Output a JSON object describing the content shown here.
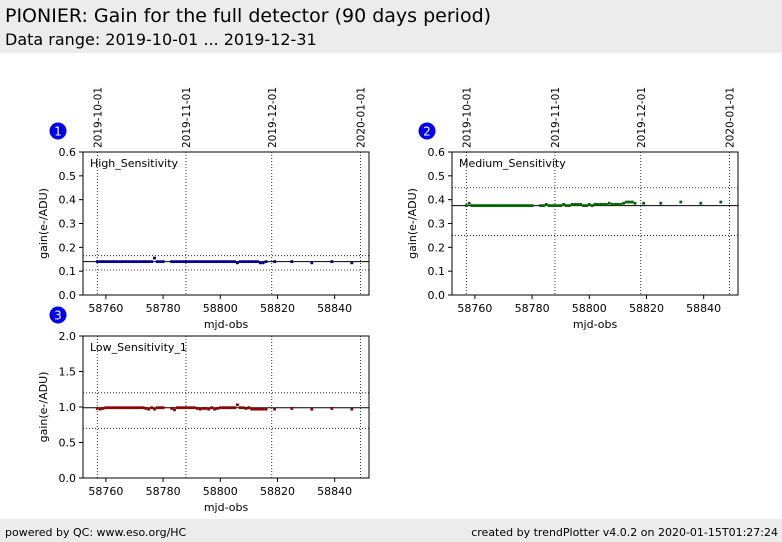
{
  "header": {
    "title": "PIONIER: Gain for the full detector (90 days period)",
    "subtitle": "Data range: 2019-10-01 ... 2019-12-31"
  },
  "footer": {
    "left": "powered by QC: www.eso.org/HC",
    "right": "created by trendPlotter v4.0.2 on 2020-01-15T01:27:24"
  },
  "colors": {
    "high": "#00008b",
    "medium": "#006400",
    "low": "#8b0000",
    "badge": "#0000ee"
  },
  "chart_data": [
    {
      "type": "scatter",
      "badge": "1",
      "label": "High_Sensitivity",
      "xlabel": "mjd-obs",
      "ylabel": "gain(e-/ADU)",
      "xlim": [
        58752,
        58852
      ],
      "ylim": [
        0.0,
        0.6
      ],
      "xticks": [
        58760,
        58780,
        58800,
        58820,
        58840
      ],
      "yticks": [
        "0.0",
        "0.1",
        "0.2",
        "0.3",
        "0.4",
        "0.5",
        "0.6"
      ],
      "date_ticks": [
        {
          "label": "2019-10-01",
          "mjd": 58757
        },
        {
          "label": "2019-11-01",
          "mjd": 58788
        },
        {
          "label": "2019-12-01",
          "mjd": 58818
        },
        {
          "label": "2020-01-01",
          "mjd": 58849
        }
      ],
      "ref_line": 0.14,
      "band": [
        0.105,
        0.165
      ],
      "points": [
        [
          58757,
          0.14
        ],
        [
          58758,
          0.14
        ],
        [
          58759,
          0.14
        ],
        [
          58760,
          0.14
        ],
        [
          58761,
          0.14
        ],
        [
          58762,
          0.14
        ],
        [
          58763,
          0.14
        ],
        [
          58764,
          0.14
        ],
        [
          58765,
          0.14
        ],
        [
          58766,
          0.14
        ],
        [
          58767,
          0.14
        ],
        [
          58768,
          0.14
        ],
        [
          58769,
          0.14
        ],
        [
          58770,
          0.14
        ],
        [
          58771,
          0.14
        ],
        [
          58772,
          0.14
        ],
        [
          58773,
          0.14
        ],
        [
          58774,
          0.14
        ],
        [
          58775,
          0.14
        ],
        [
          58776,
          0.14
        ],
        [
          58777,
          0.155
        ],
        [
          58778,
          0.14
        ],
        [
          58779,
          0.14
        ],
        [
          58780,
          0.14
        ],
        [
          58783,
          0.14
        ],
        [
          58784,
          0.14
        ],
        [
          58785,
          0.14
        ],
        [
          58786,
          0.14
        ],
        [
          58787,
          0.14
        ],
        [
          58788,
          0.14
        ],
        [
          58789,
          0.14
        ],
        [
          58790,
          0.14
        ],
        [
          58791,
          0.14
        ],
        [
          58792,
          0.14
        ],
        [
          58793,
          0.14
        ],
        [
          58794,
          0.14
        ],
        [
          58795,
          0.14
        ],
        [
          58796,
          0.14
        ],
        [
          58797,
          0.14
        ],
        [
          58798,
          0.14
        ],
        [
          58799,
          0.14
        ],
        [
          58800,
          0.14
        ],
        [
          58801,
          0.14
        ],
        [
          58802,
          0.14
        ],
        [
          58803,
          0.14
        ],
        [
          58804,
          0.14
        ],
        [
          58805,
          0.14
        ],
        [
          58806,
          0.135
        ],
        [
          58807,
          0.14
        ],
        [
          58808,
          0.14
        ],
        [
          58809,
          0.14
        ],
        [
          58810,
          0.14
        ],
        [
          58811,
          0.14
        ],
        [
          58812,
          0.14
        ],
        [
          58813,
          0.14
        ],
        [
          58814,
          0.135
        ],
        [
          58815,
          0.135
        ],
        [
          58816,
          0.14
        ],
        [
          58819,
          0.14
        ],
        [
          58825,
          0.14
        ],
        [
          58832,
          0.135
        ],
        [
          58839,
          0.14
        ],
        [
          58846,
          0.135
        ]
      ]
    },
    {
      "type": "scatter",
      "badge": "2",
      "label": "Medium_Sensitivity",
      "xlabel": "mjd-obs",
      "ylabel": "gain(e-/ADU)",
      "xlim": [
        58752,
        58852
      ],
      "ylim": [
        0.0,
        0.6
      ],
      "xticks": [
        58760,
        58780,
        58800,
        58820,
        58840
      ],
      "yticks": [
        "0.0",
        "0.1",
        "0.2",
        "0.3",
        "0.4",
        "0.5",
        "0.6"
      ],
      "date_ticks": [
        {
          "label": "2019-10-01",
          "mjd": 58757
        },
        {
          "label": "2019-11-01",
          "mjd": 58788
        },
        {
          "label": "2019-12-01",
          "mjd": 58818
        },
        {
          "label": "2020-01-01",
          "mjd": 58849
        }
      ],
      "ref_line": 0.375,
      "band": [
        0.25,
        0.45
      ],
      "points": [
        [
          58757,
          0.375
        ],
        [
          58758,
          0.385
        ],
        [
          58759,
          0.375
        ],
        [
          58760,
          0.375
        ],
        [
          58761,
          0.375
        ],
        [
          58762,
          0.375
        ],
        [
          58763,
          0.375
        ],
        [
          58764,
          0.375
        ],
        [
          58765,
          0.375
        ],
        [
          58766,
          0.375
        ],
        [
          58767,
          0.375
        ],
        [
          58768,
          0.375
        ],
        [
          58769,
          0.375
        ],
        [
          58770,
          0.375
        ],
        [
          58771,
          0.375
        ],
        [
          58772,
          0.375
        ],
        [
          58773,
          0.375
        ],
        [
          58774,
          0.375
        ],
        [
          58775,
          0.375
        ],
        [
          58776,
          0.375
        ],
        [
          58777,
          0.375
        ],
        [
          58778,
          0.375
        ],
        [
          58779,
          0.375
        ],
        [
          58780,
          0.375
        ],
        [
          58783,
          0.375
        ],
        [
          58784,
          0.375
        ],
        [
          58785,
          0.38
        ],
        [
          58786,
          0.375
        ],
        [
          58787,
          0.375
        ],
        [
          58788,
          0.375
        ],
        [
          58789,
          0.375
        ],
        [
          58790,
          0.375
        ],
        [
          58791,
          0.38
        ],
        [
          58792,
          0.375
        ],
        [
          58793,
          0.375
        ],
        [
          58794,
          0.38
        ],
        [
          58795,
          0.38
        ],
        [
          58796,
          0.38
        ],
        [
          58797,
          0.38
        ],
        [
          58798,
          0.375
        ],
        [
          58799,
          0.375
        ],
        [
          58800,
          0.38
        ],
        [
          58801,
          0.375
        ],
        [
          58802,
          0.38
        ],
        [
          58803,
          0.38
        ],
        [
          58804,
          0.38
        ],
        [
          58805,
          0.38
        ],
        [
          58806,
          0.38
        ],
        [
          58807,
          0.385
        ],
        [
          58808,
          0.38
        ],
        [
          58809,
          0.38
        ],
        [
          58810,
          0.38
        ],
        [
          58811,
          0.38
        ],
        [
          58812,
          0.385
        ],
        [
          58813,
          0.39
        ],
        [
          58814,
          0.39
        ],
        [
          58815,
          0.39
        ],
        [
          58816,
          0.385
        ],
        [
          58819,
          0.385
        ],
        [
          58825,
          0.385
        ],
        [
          58832,
          0.39
        ],
        [
          58839,
          0.385
        ],
        [
          58846,
          0.39
        ]
      ]
    },
    {
      "type": "scatter",
      "badge": "3",
      "label": "Low_Sensitivity_1",
      "xlabel": "mjd-obs",
      "ylabel": "gain(e-/ADU)",
      "xlim": [
        58752,
        58852
      ],
      "ylim": [
        0.0,
        2.0
      ],
      "xticks": [
        58760,
        58780,
        58800,
        58820,
        58840
      ],
      "yticks": [
        "0.0",
        "0.5",
        "1.0",
        "1.5",
        "2.0"
      ],
      "date_ticks": [
        {
          "mjd": 58757
        },
        {
          "mjd": 58788
        },
        {
          "mjd": 58818
        },
        {
          "mjd": 58849
        }
      ],
      "ref_line": 0.99,
      "band": [
        0.7,
        1.2
      ],
      "points": [
        [
          58757,
          0.98
        ],
        [
          58758,
          0.97
        ],
        [
          58759,
          0.98
        ],
        [
          58760,
          0.99
        ],
        [
          58761,
          0.99
        ],
        [
          58762,
          0.99
        ],
        [
          58763,
          0.99
        ],
        [
          58764,
          0.99
        ],
        [
          58765,
          0.99
        ],
        [
          58766,
          0.99
        ],
        [
          58767,
          0.99
        ],
        [
          58768,
          0.99
        ],
        [
          58769,
          0.99
        ],
        [
          58770,
          0.99
        ],
        [
          58771,
          0.99
        ],
        [
          58772,
          0.99
        ],
        [
          58773,
          0.99
        ],
        [
          58774,
          0.98
        ],
        [
          58775,
          0.97
        ],
        [
          58776,
          0.99
        ],
        [
          58777,
          0.97
        ],
        [
          58778,
          0.99
        ],
        [
          58779,
          0.99
        ],
        [
          58780,
          0.99
        ],
        [
          58783,
          0.98
        ],
        [
          58784,
          0.96
        ],
        [
          58785,
          0.99
        ],
        [
          58786,
          0.99
        ],
        [
          58787,
          0.99
        ],
        [
          58788,
          0.99
        ],
        [
          58789,
          0.99
        ],
        [
          58790,
          0.99
        ],
        [
          58791,
          0.99
        ],
        [
          58792,
          0.98
        ],
        [
          58793,
          0.97
        ],
        [
          58794,
          0.98
        ],
        [
          58795,
          0.98
        ],
        [
          58796,
          0.97
        ],
        [
          58797,
          0.99
        ],
        [
          58798,
          0.97
        ],
        [
          58799,
          0.98
        ],
        [
          58800,
          0.99
        ],
        [
          58801,
          0.99
        ],
        [
          58802,
          0.99
        ],
        [
          58803,
          0.99
        ],
        [
          58804,
          0.99
        ],
        [
          58805,
          0.99
        ],
        [
          58806,
          1.03
        ],
        [
          58807,
          0.99
        ],
        [
          58808,
          0.99
        ],
        [
          58809,
          0.98
        ],
        [
          58810,
          0.99
        ],
        [
          58811,
          0.97
        ],
        [
          58812,
          0.97
        ],
        [
          58813,
          0.97
        ],
        [
          58814,
          0.97
        ],
        [
          58815,
          0.97
        ],
        [
          58816,
          0.97
        ],
        [
          58819,
          0.97
        ],
        [
          58825,
          0.98
        ],
        [
          58832,
          0.97
        ],
        [
          58839,
          0.98
        ],
        [
          58846,
          0.97
        ]
      ]
    }
  ]
}
